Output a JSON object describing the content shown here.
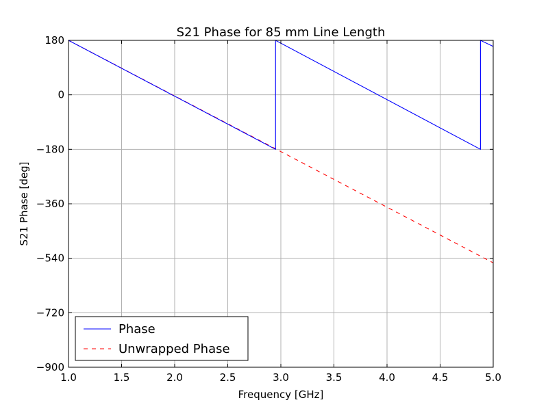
{
  "chart_data": {
    "type": "line",
    "title": "S21 Phase for 85 mm Line Length",
    "xlabel": "Frequency [GHz]",
    "ylabel": "S21 Phase [deg]",
    "xlim": [
      1.0,
      5.0
    ],
    "ylim": [
      -900,
      180
    ],
    "xticks": [
      1.0,
      1.5,
      2.0,
      2.5,
      3.0,
      3.5,
      4.0,
      4.5,
      5.0
    ],
    "xtick_labels": [
      "1.0",
      "1.5",
      "2.0",
      "2.5",
      "3.0",
      "3.5",
      "4.0",
      "4.5",
      "5.0"
    ],
    "yticks": [
      180,
      0,
      -180,
      -360,
      -540,
      -720,
      -900
    ],
    "ytick_labels": [
      "180",
      "0",
      "−180",
      "−360",
      "−540",
      "−720",
      "−900"
    ],
    "grid": true,
    "legend_position": "lower-left",
    "series": [
      {
        "name": "Phase",
        "color": "#0000ff",
        "line_style": "solid",
        "x": [
          1.0,
          2.95,
          2.95,
          4.88,
          4.88,
          5.0
        ],
        "y": [
          180,
          -180,
          180,
          -180,
          180,
          160
        ]
      },
      {
        "name": "Unwrapped Phase",
        "color": "#ff0000",
        "line_style": "dashed",
        "x": [
          1.0,
          5.0
        ],
        "y": [
          180,
          -555
        ]
      }
    ]
  }
}
